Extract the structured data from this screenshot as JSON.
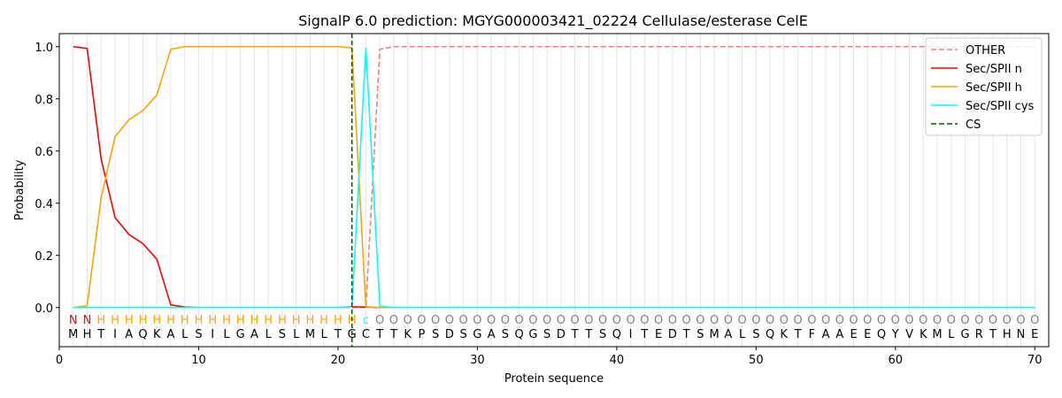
{
  "chart_data": {
    "type": "line",
    "title": "SignalP 6.0 prediction: MGYG000003421_02224 Cellulase/esterase CelE",
    "xlabel": "Protein sequence",
    "ylabel": "Probability",
    "xlim": [
      0,
      71
    ],
    "ylim": [
      -0.15,
      1.05
    ],
    "x_ticks": [
      0,
      10,
      20,
      30,
      40,
      50,
      60,
      70
    ],
    "y_ticks": [
      0.0,
      0.2,
      0.4,
      0.6,
      0.8,
      1.0
    ],
    "y_tick_labels": [
      "0.0",
      "0.2",
      "0.4",
      "0.6",
      "0.8",
      "1.0"
    ],
    "grid": "vertical lines at each residue",
    "legend_position": "top-right",
    "sequence": [
      "M",
      "H",
      "T",
      "I",
      "A",
      "Q",
      "K",
      "A",
      "L",
      "S",
      "I",
      "L",
      "G",
      "A",
      "L",
      "S",
      "L",
      "M",
      "L",
      "T",
      "G",
      "C",
      "T",
      "T",
      "K",
      "P",
      "S",
      "D",
      "S",
      "G",
      "A",
      "S",
      "Q",
      "G",
      "S",
      "D",
      "T",
      "T",
      "S",
      "Q",
      "I",
      "T",
      "E",
      "D",
      "T",
      "S",
      "M",
      "A",
      "L",
      "S",
      "Q",
      "K",
      "T",
      "F",
      "A",
      "A",
      "E",
      "E",
      "Q",
      "Y",
      "V",
      "K",
      "M",
      "L",
      "G",
      "R",
      "T",
      "H",
      "N",
      "E"
    ],
    "labels": [
      "N",
      "N",
      "H",
      "H",
      "H",
      "H",
      "H",
      "H",
      "H",
      "H",
      "H",
      "H",
      "H",
      "H",
      "H",
      "H",
      "H",
      "H",
      "H",
      "H",
      "H",
      "c",
      "O",
      "O",
      "O",
      "O",
      "O",
      "O",
      "O",
      "O",
      "O",
      "O",
      "O",
      "O",
      "O",
      "O",
      "O",
      "O",
      "O",
      "O",
      "O",
      "O",
      "O",
      "O",
      "O",
      "O",
      "O",
      "O",
      "O",
      "O",
      "O",
      "O",
      "O",
      "O",
      "O",
      "O",
      "O",
      "O",
      "O",
      "O",
      "O",
      "O",
      "O",
      "O",
      "O",
      "O",
      "O",
      "O",
      "O",
      "O"
    ],
    "label_colors": {
      "N": "#ff0000",
      "H": "#ffa500",
      "c": "#00ffff",
      "O": "#808080"
    },
    "series": [
      {
        "name": "OTHER",
        "color": "#f08080",
        "dash": true,
        "values": [
          0,
          0,
          0,
          0,
          0,
          0,
          0,
          0,
          0,
          0,
          0,
          0,
          0,
          0,
          0,
          0,
          0,
          0,
          0,
          0,
          0.0,
          0.0,
          0.99,
          1,
          1,
          1,
          1,
          1,
          1,
          1,
          1,
          1,
          1,
          1,
          1,
          1,
          1,
          1,
          1,
          1,
          1,
          1,
          1,
          1,
          1,
          1,
          1,
          1,
          1,
          1,
          1,
          1,
          1,
          1,
          1,
          1,
          1,
          1,
          1,
          1,
          1,
          1,
          1,
          1,
          1,
          1,
          1,
          1,
          1,
          1
        ]
      },
      {
        "name": "Sec/SPII n",
        "color": "#ff0000",
        "dash": false,
        "values": [
          1.0,
          0.993,
          0.57,
          0.345,
          0.28,
          0.245,
          0.185,
          0.01,
          0.002,
          0,
          0,
          0,
          0,
          0,
          0,
          0,
          0,
          0,
          0,
          0,
          0.003,
          0.002,
          0,
          0,
          0,
          0,
          0,
          0,
          0,
          0,
          0,
          0,
          0,
          0,
          0,
          0,
          0,
          0,
          0,
          0,
          0,
          0,
          0,
          0,
          0,
          0,
          0,
          0,
          0,
          0,
          0,
          0,
          0,
          0,
          0,
          0,
          0,
          0,
          0,
          0,
          0,
          0,
          0,
          0,
          0,
          0,
          0,
          0,
          0,
          0
        ]
      },
      {
        "name": "Sec/SPII h",
        "color": "#ffa500",
        "dash": false,
        "values": [
          0.0,
          0.007,
          0.42,
          0.655,
          0.72,
          0.755,
          0.815,
          0.99,
          1.0,
          1.0,
          1.0,
          1.0,
          1.0,
          1.0,
          1.0,
          1.0,
          1.0,
          1.0,
          1.0,
          1.0,
          0.995,
          0.003,
          0.0,
          0,
          0,
          0,
          0,
          0,
          0,
          0,
          0,
          0,
          0,
          0,
          0,
          0,
          0,
          0,
          0,
          0,
          0,
          0,
          0,
          0,
          0,
          0,
          0,
          0,
          0,
          0,
          0,
          0,
          0,
          0,
          0,
          0,
          0,
          0,
          0,
          0,
          0,
          0,
          0,
          0,
          0,
          0,
          0,
          0,
          0,
          0
        ]
      },
      {
        "name": "Sec/SPII cys",
        "color": "#00ffff",
        "dash": false,
        "values": [
          0,
          0,
          0,
          0,
          0,
          0,
          0,
          0,
          0,
          0,
          0,
          0,
          0,
          0,
          0,
          0,
          0,
          0,
          0,
          0,
          0.002,
          0.995,
          0.005,
          0,
          0,
          0,
          0,
          0,
          0,
          0,
          0,
          0,
          0,
          0,
          0,
          0,
          0,
          0,
          0,
          0,
          0,
          0,
          0,
          0,
          0,
          0,
          0,
          0,
          0,
          0,
          0,
          0,
          0,
          0,
          0,
          0,
          0,
          0,
          0,
          0,
          0,
          0,
          0,
          0,
          0,
          0,
          0,
          0,
          0,
          0
        ]
      }
    ],
    "cs": {
      "name": "CS",
      "x": 21,
      "color": "#006400"
    }
  }
}
